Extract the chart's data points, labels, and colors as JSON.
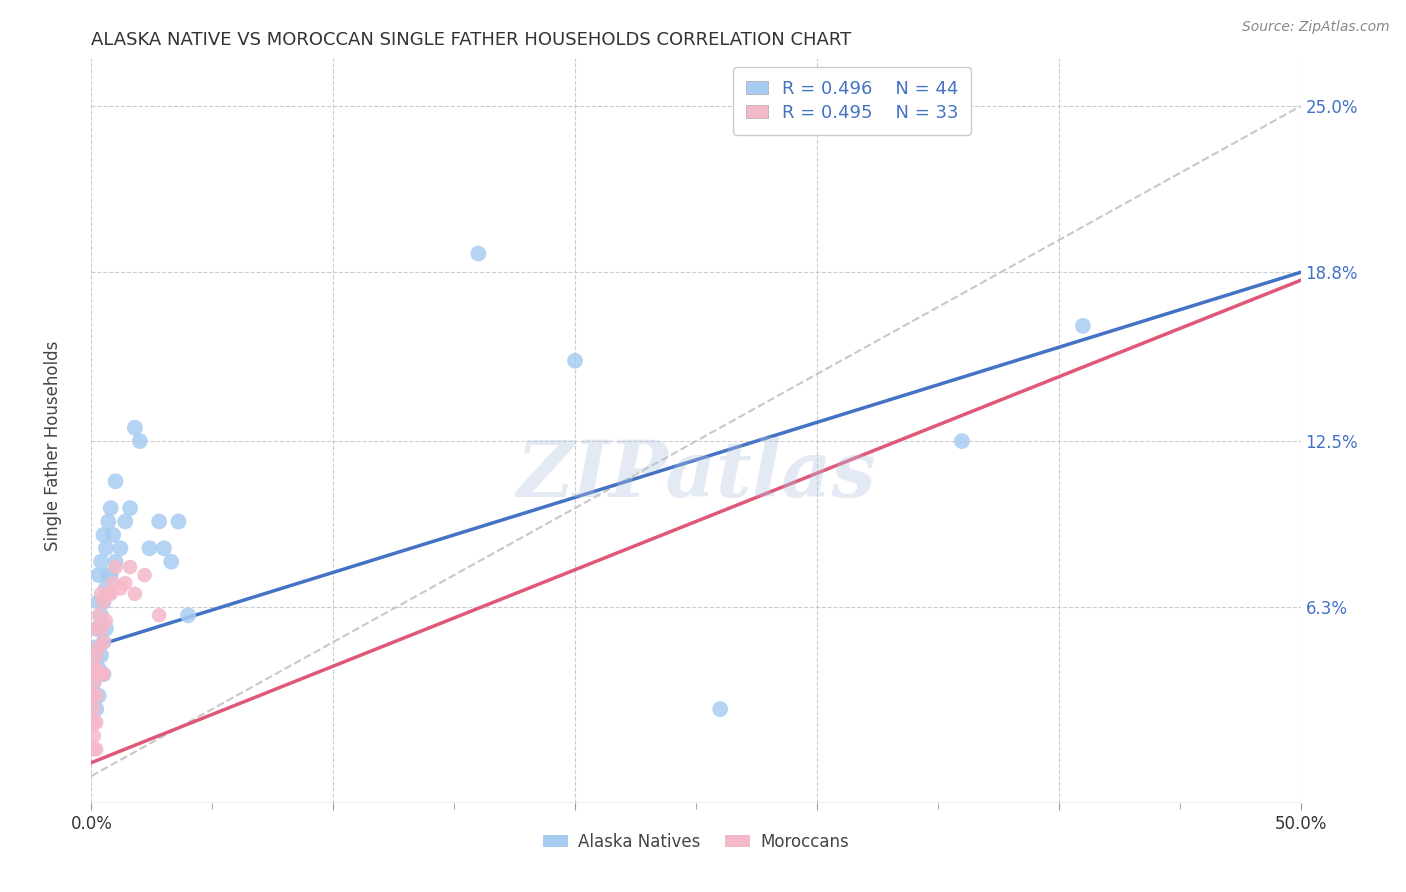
{
  "title": "ALASKA NATIVE VS MOROCCAN SINGLE FATHER HOUSEHOLDS CORRELATION CHART",
  "source": "Source: ZipAtlas.com",
  "ylabel": "Single Father Households",
  "ytick_labels": [
    "",
    "6.3%",
    "12.5%",
    "18.8%",
    "25.0%"
  ],
  "ytick_values": [
    0.0,
    0.063,
    0.125,
    0.188,
    0.25
  ],
  "xlim": [
    0.0,
    0.5
  ],
  "ylim": [
    -0.01,
    0.268
  ],
  "legend_blue_r": "R = 0.496",
  "legend_blue_n": "N = 44",
  "legend_pink_r": "R = 0.495",
  "legend_pink_n": "N = 33",
  "blue_color": "#A8CCF0",
  "pink_color": "#F5B8C8",
  "trendline_blue_color": "#4472C4",
  "trendline_pink_color": "#E05878",
  "trendline_diag_color": "#C8C8C8",
  "watermark_text": "ZIPatlas",
  "alaska_x": [
    0.001,
    0.001,
    0.002,
    0.002,
    0.002,
    0.002,
    0.003,
    0.003,
    0.003,
    0.003,
    0.003,
    0.004,
    0.004,
    0.004,
    0.005,
    0.005,
    0.005,
    0.005,
    0.006,
    0.006,
    0.006,
    0.007,
    0.007,
    0.008,
    0.008,
    0.009,
    0.01,
    0.01,
    0.012,
    0.014,
    0.016,
    0.018,
    0.02,
    0.024,
    0.028,
    0.03,
    0.033,
    0.036,
    0.04,
    0.16,
    0.2,
    0.26,
    0.36,
    0.41
  ],
  "alaska_y": [
    0.035,
    0.048,
    0.025,
    0.038,
    0.045,
    0.055,
    0.03,
    0.04,
    0.055,
    0.065,
    0.075,
    0.045,
    0.06,
    0.08,
    0.038,
    0.05,
    0.065,
    0.09,
    0.055,
    0.07,
    0.085,
    0.075,
    0.095,
    0.075,
    0.1,
    0.09,
    0.08,
    0.11,
    0.085,
    0.095,
    0.1,
    0.13,
    0.125,
    0.085,
    0.095,
    0.085,
    0.08,
    0.095,
    0.06,
    0.195,
    0.155,
    0.025,
    0.125,
    0.168
  ],
  "moroccan_x": [
    0.001,
    0.001,
    0.001,
    0.001,
    0.001,
    0.001,
    0.001,
    0.002,
    0.002,
    0.002,
    0.002,
    0.002,
    0.002,
    0.003,
    0.003,
    0.003,
    0.004,
    0.004,
    0.004,
    0.005,
    0.005,
    0.005,
    0.006,
    0.007,
    0.008,
    0.009,
    0.01,
    0.012,
    0.014,
    0.016,
    0.018,
    0.022,
    0.028
  ],
  "moroccan_y": [
    0.01,
    0.015,
    0.02,
    0.025,
    0.03,
    0.035,
    0.04,
    0.01,
    0.02,
    0.03,
    0.04,
    0.045,
    0.055,
    0.038,
    0.048,
    0.06,
    0.038,
    0.055,
    0.068,
    0.038,
    0.05,
    0.065,
    0.058,
    0.068,
    0.068,
    0.072,
    0.078,
    0.07,
    0.072,
    0.078,
    0.068,
    0.075,
    0.06
  ],
  "blue_trendline_x": [
    0.0,
    0.5
  ],
  "blue_trendline_y": [
    0.048,
    0.188
  ],
  "pink_trendline_x": [
    0.0,
    0.5
  ],
  "pink_trendline_y": [
    0.005,
    0.185
  ],
  "diag_trendline_x": [
    0.0,
    0.5
  ],
  "diag_trendline_y": [
    0.0,
    0.25
  ],
  "x_minor_ticks": [
    0.05,
    0.1,
    0.15,
    0.2,
    0.25,
    0.3,
    0.35,
    0.4,
    0.45
  ]
}
